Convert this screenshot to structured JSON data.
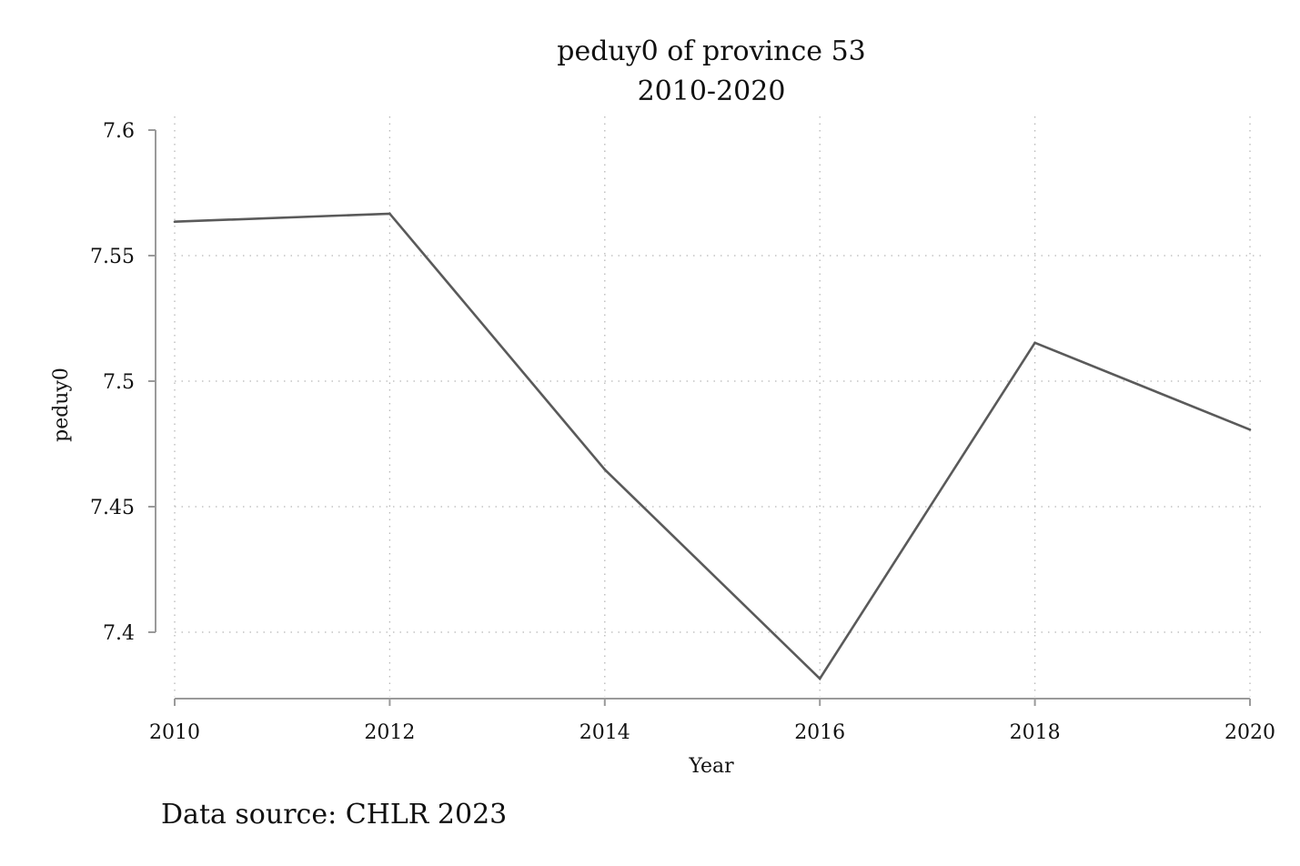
{
  "chart_data": {
    "type": "line",
    "title": "peduy0 of province 53",
    "subtitle": "2010-2020",
    "xlabel": "Year",
    "ylabel": "peduy0",
    "note": "Data source: CHLR 2023",
    "x": [
      2010,
      2012,
      2014,
      2016,
      2018,
      2020
    ],
    "series": [
      {
        "values": [
          7.5635,
          7.5667,
          7.4648,
          7.3815,
          7.5153,
          7.4807
        ]
      }
    ],
    "xlim": [
      2010,
      2020
    ],
    "ylim": [
      7.373,
      7.605
    ],
    "x_ticks": [
      2010,
      2012,
      2014,
      2016,
      2018,
      2020
    ],
    "x_tick_labels": [
      "2010",
      "2012",
      "2014",
      "2016",
      "2018",
      "2020"
    ],
    "y_ticks": [
      7.4,
      7.45,
      7.5,
      7.55,
      7.6
    ],
    "y_tick_labels": [
      "7.4",
      "7.45",
      "7.5",
      "7.55",
      "7.6"
    ],
    "grid": true,
    "legend": "none",
    "colors": {
      "line": "#5a5a5a",
      "grid": "#b8b8b8",
      "axis": "#9a9a9a",
      "text": "#111111"
    }
  }
}
